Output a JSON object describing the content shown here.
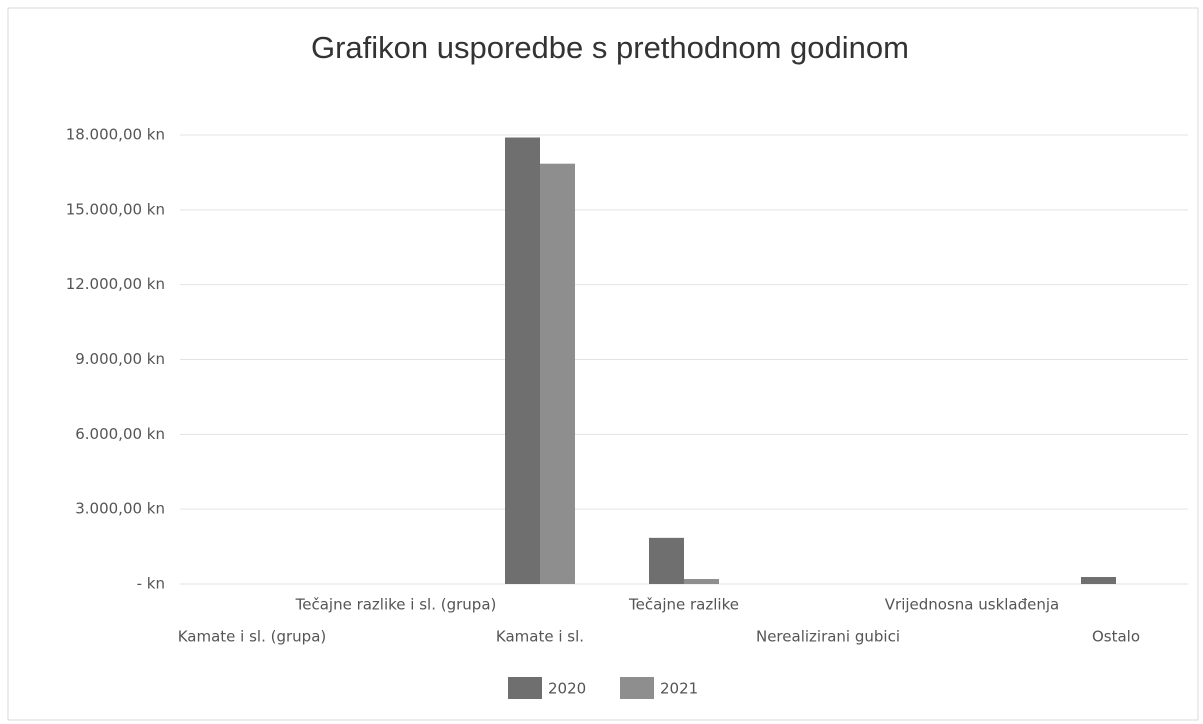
{
  "chart_data": {
    "type": "bar",
    "title": "Grafikon usporedbe s prethodnom godinom",
    "categories": [
      "Kamate i sl. (grupa)",
      "Tečajne razlike i sl. (grupa)",
      "Kamate i sl.",
      "Tečajne razlike",
      "Nerealizirani gubici",
      "Vrijednosna usklađenja",
      "Ostalo"
    ],
    "series": [
      {
        "name": "2020",
        "color": "#6f6f6f",
        "values": [
          0,
          0,
          17900,
          1850,
          0,
          0,
          280
        ]
      },
      {
        "name": "2021",
        "color": "#8e8e8e",
        "values": [
          0,
          0,
          16850,
          200,
          0,
          0,
          0
        ]
      }
    ],
    "ylim": [
      0,
      18000
    ],
    "yticks": [
      {
        "value": 0,
        "label": "-  kn"
      },
      {
        "value": 3000,
        "label": "3.000,00 kn"
      },
      {
        "value": 6000,
        "label": "6.000,00 kn"
      },
      {
        "value": 9000,
        "label": "9.000,00 kn"
      },
      {
        "value": 12000,
        "label": "12.000,00 kn"
      },
      {
        "value": 15000,
        "label": "15.000,00 kn"
      },
      {
        "value": 18000,
        "label": "18.000,00 kn"
      }
    ],
    "grid": true,
    "legend": "bottom"
  }
}
